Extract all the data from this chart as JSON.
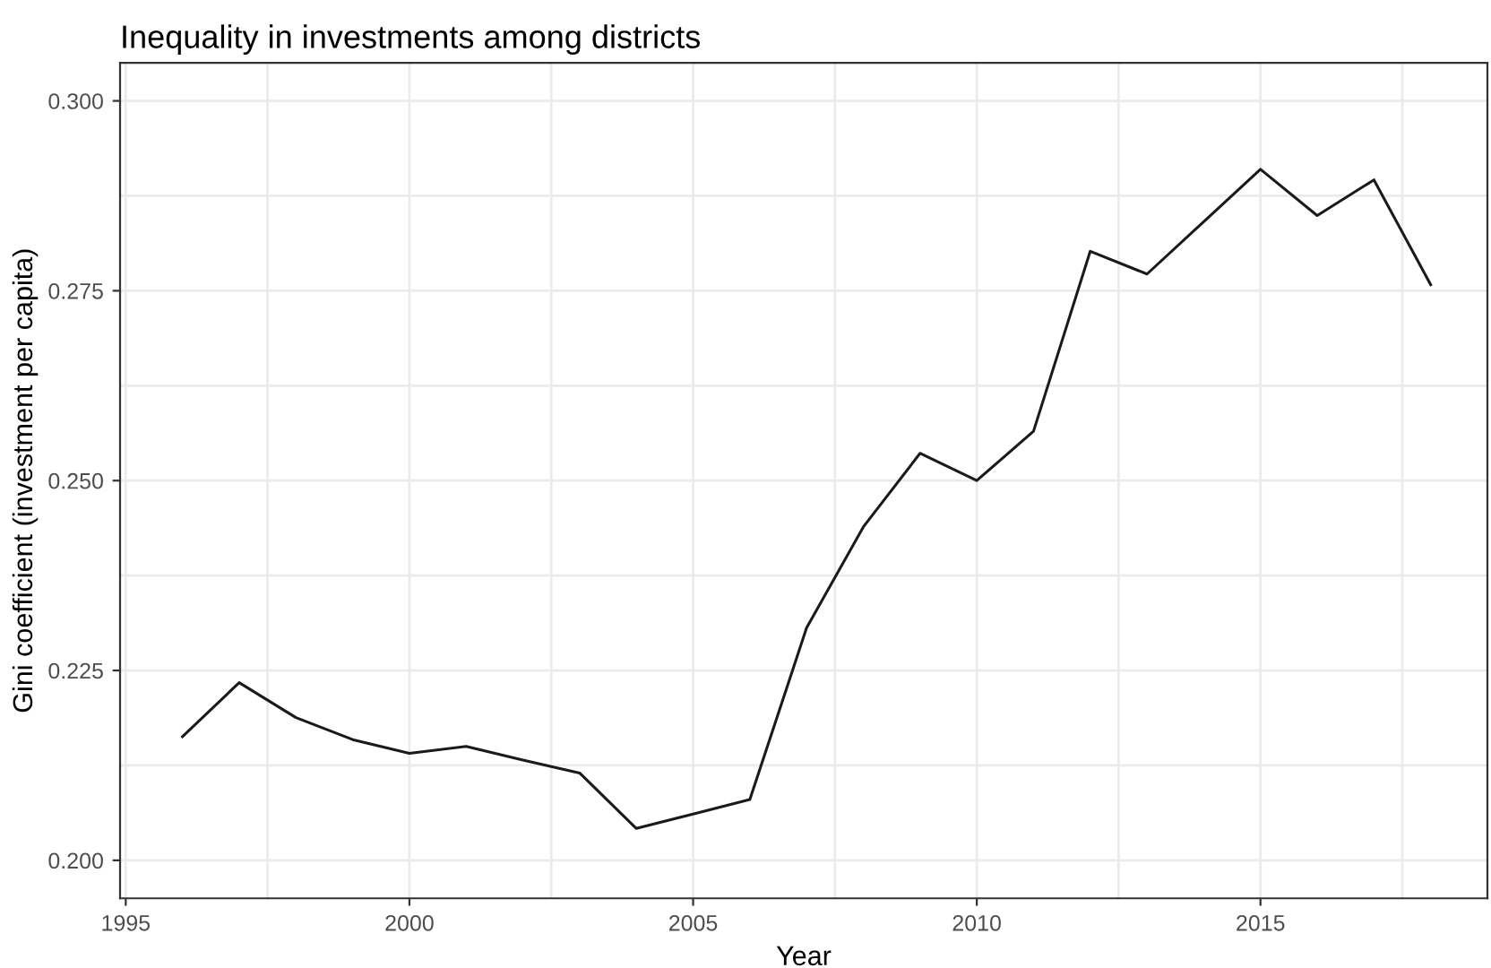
{
  "chart_data": {
    "type": "line",
    "title": "Inequality in investments among districts",
    "xlabel": "Year",
    "ylabel": "Gini coefficient (investment per capita)",
    "x": [
      1996,
      1997,
      1998,
      1999,
      2000,
      2001,
      2002,
      2003,
      2004,
      2005,
      2006,
      2007,
      2008,
      2009,
      2010,
      2011,
      2012,
      2013,
      2014,
      2015,
      2016,
      2017,
      2018
    ],
    "series": [
      {
        "color": "#1a1a1a",
        "values": [
          0.2163,
          0.2234,
          0.2188,
          0.2159,
          0.2141,
          0.215,
          0.2132,
          0.2115,
          0.2042,
          0.2061,
          0.208,
          0.2306,
          0.2439,
          0.2536,
          0.25,
          0.2565,
          0.2802,
          0.2772,
          0.2841,
          0.291,
          0.2849,
          0.2896,
          0.2758
        ]
      }
    ],
    "xlim": [
      1994.9,
      2019.0
    ],
    "ylim": [
      0.195,
      0.305
    ],
    "xticks": [
      1995,
      2000,
      2005,
      2010,
      2015
    ],
    "yticks": [
      {
        "value": 0.2,
        "label": "0.200"
      },
      {
        "value": 0.225,
        "label": "0.225"
      },
      {
        "value": 0.25,
        "label": "0.250"
      },
      {
        "value": 0.275,
        "label": "0.275"
      },
      {
        "value": 0.3,
        "label": "0.300"
      }
    ],
    "grid": true,
    "marker": "none",
    "line_style": "solid"
  }
}
